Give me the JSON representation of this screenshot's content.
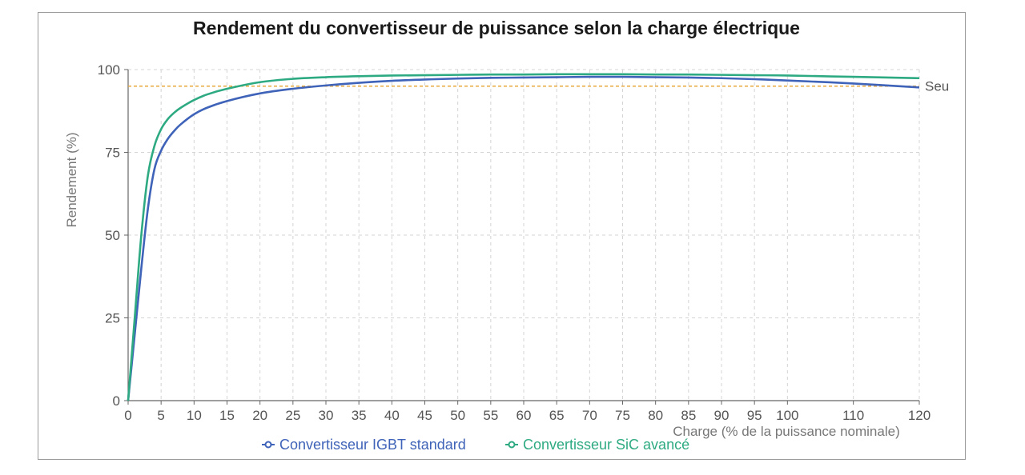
{
  "chart_data": {
    "type": "line",
    "title": "Rendement du convertisseur de puissance selon la charge électrique",
    "xlabel": "Charge (% de la puissance nominale)",
    "ylabel": "Rendement (%)",
    "xlim": [
      0,
      120
    ],
    "ylim": [
      0,
      100
    ],
    "x_ticks": [
      0,
      5,
      10,
      15,
      20,
      25,
      30,
      35,
      40,
      45,
      50,
      55,
      60,
      65,
      70,
      75,
      80,
      85,
      90,
      95,
      100,
      110,
      120
    ],
    "y_ticks": [
      0,
      25,
      50,
      75,
      100
    ],
    "grid": true,
    "legend_position": "bottom",
    "threshold": {
      "label": "Seu",
      "value": 95,
      "color": "#e8a83c"
    },
    "series": [
      {
        "name": "Convertisseur IGBT standard",
        "color": "#3f63b8",
        "x": [
          0,
          1,
          2,
          3,
          4,
          5,
          6,
          7,
          8,
          10,
          12,
          15,
          20,
          25,
          30,
          35,
          40,
          45,
          50,
          55,
          60,
          65,
          70,
          75,
          80,
          85,
          90,
          95,
          100,
          110,
          120
        ],
        "y": [
          0,
          20,
          40,
          58,
          70,
          75.5,
          79,
          81.5,
          83.5,
          86.5,
          88.5,
          90.5,
          92.8,
          94.2,
          95.2,
          96,
          96.6,
          97,
          97.3,
          97.5,
          97.6,
          97.7,
          97.8,
          97.8,
          97.7,
          97.6,
          97.4,
          97.1,
          96.7,
          95.8,
          94.6
        ]
      },
      {
        "name": "Convertisseur SiC avancé",
        "color": "#2eaa82",
        "x": [
          0,
          1,
          2,
          3,
          4,
          5,
          6,
          7,
          8,
          10,
          12,
          15,
          20,
          25,
          30,
          35,
          40,
          45,
          50,
          55,
          60,
          65,
          70,
          75,
          80,
          85,
          90,
          95,
          100,
          110,
          120
        ],
        "y": [
          0,
          25,
          50,
          68,
          77,
          82,
          85,
          87,
          88.5,
          90.8,
          92.5,
          94.2,
          96.2,
          97.2,
          97.7,
          98,
          98.2,
          98.3,
          98.4,
          98.5,
          98.5,
          98.6,
          98.6,
          98.6,
          98.5,
          98.5,
          98.4,
          98.3,
          98.2,
          97.8,
          97.4
        ]
      }
    ]
  }
}
